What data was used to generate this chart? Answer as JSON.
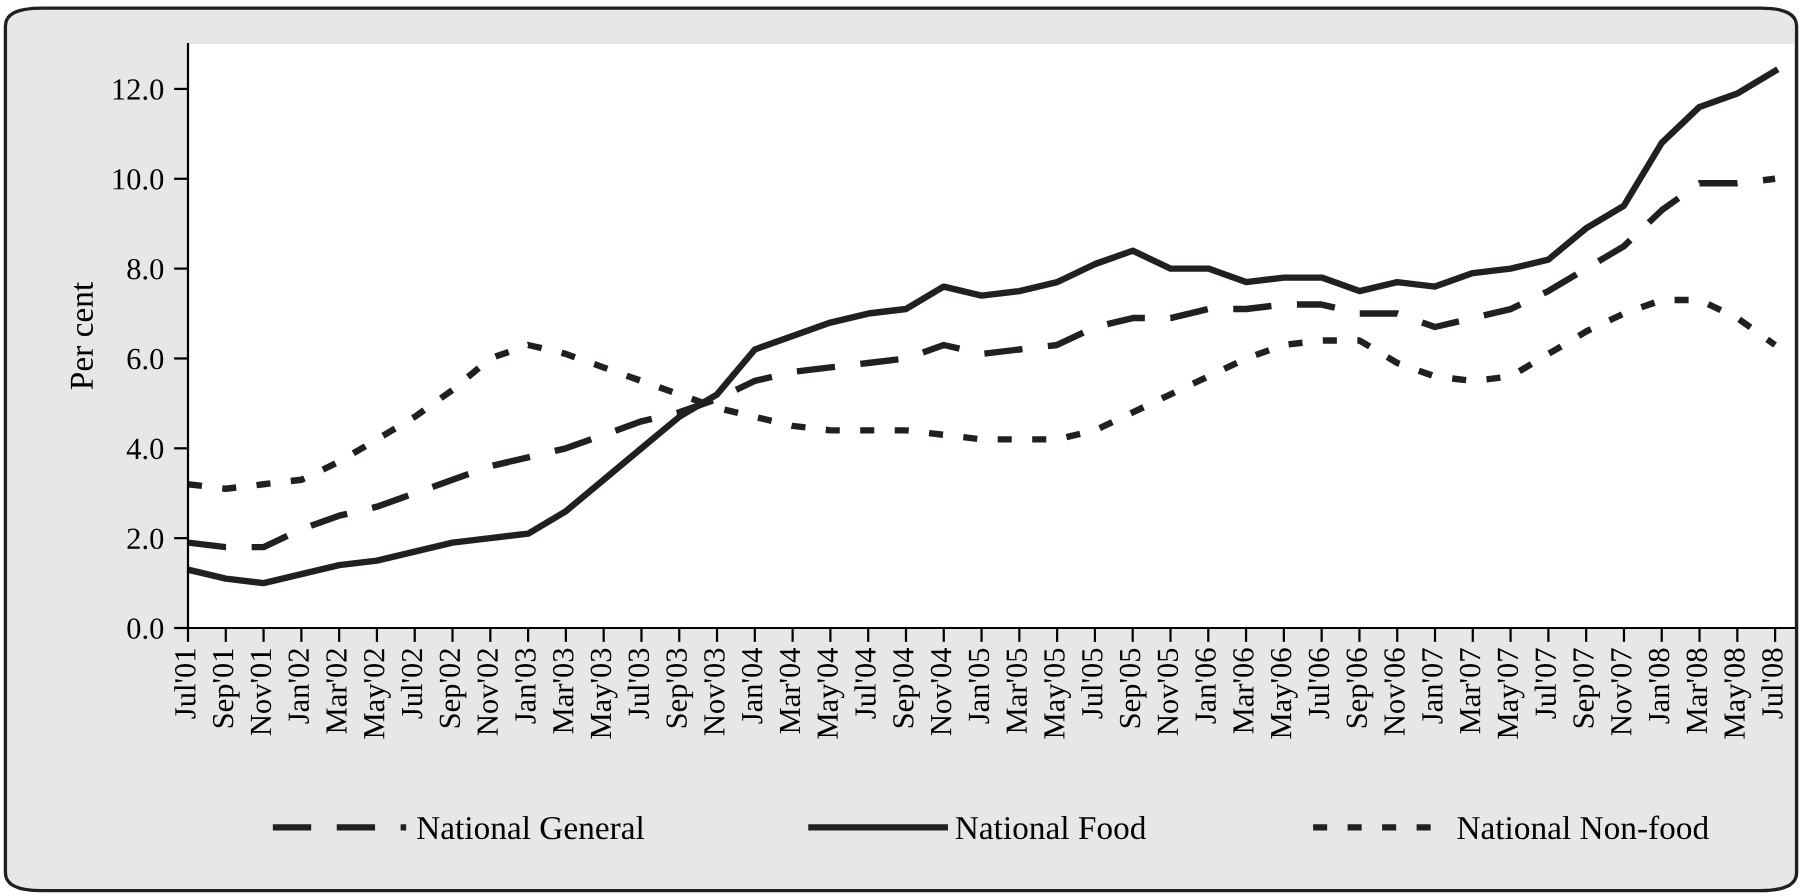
{
  "chart_data": {
    "type": "line",
    "ylabel": "Per cent",
    "categories": [
      "Jul'01",
      "Sep'01",
      "Nov'01",
      "Jan'02",
      "Mar'02",
      "May'02",
      "Jul'02",
      "Sep'02",
      "Nov'02",
      "Jan'03",
      "Mar'03",
      "May'03",
      "Jul'03",
      "Sep'03",
      "Nov'03",
      "Jan'04",
      "Mar'04",
      "May'04",
      "Jul'04",
      "Sep'04",
      "Nov'04",
      "Jan'05",
      "Mar'05",
      "May'05",
      "Jul'05",
      "Sep'05",
      "Nov'05",
      "Jan'06",
      "Mar'06",
      "May'06",
      "Jul'06",
      "Sep'06",
      "Nov'06",
      "Jan'07",
      "Mar'07",
      "May'07",
      "Jul'07",
      "Sep'07",
      "Nov'07",
      "Jan'08",
      "Mar'08",
      "May'08",
      "Jul'08"
    ],
    "series": [
      {
        "name": "National General",
        "color": "#231f20",
        "line_style": "dashed",
        "values": [
          1.9,
          1.8,
          1.8,
          2.2,
          2.5,
          2.7,
          3.0,
          3.3,
          3.6,
          3.8,
          4.0,
          4.3,
          4.6,
          4.8,
          5.1,
          5.5,
          5.7,
          5.8,
          5.9,
          6.0,
          6.3,
          6.1,
          6.2,
          6.3,
          6.7,
          6.9,
          6.9,
          7.1,
          7.1,
          7.2,
          7.2,
          7.0,
          7.0,
          6.7,
          6.9,
          7.1,
          7.5,
          8.0,
          8.5,
          9.3,
          9.9,
          9.9,
          10.0
        ]
      },
      {
        "name": "National Food",
        "color": "#231f20",
        "line_style": "solid",
        "values": [
          1.3,
          1.1,
          1.0,
          1.2,
          1.4,
          1.5,
          1.7,
          1.9,
          2.0,
          2.1,
          2.6,
          3.3,
          4.0,
          4.7,
          5.2,
          6.2,
          6.5,
          6.8,
          7.0,
          7.1,
          7.6,
          7.4,
          7.5,
          7.7,
          8.1,
          8.4,
          8.0,
          8.0,
          7.7,
          7.8,
          7.8,
          7.5,
          7.7,
          7.6,
          7.9,
          8.0,
          8.2,
          8.9,
          9.4,
          10.8,
          11.6,
          11.9,
          12.4
        ]
      },
      {
        "name": "National Non-food",
        "color": "#231f20",
        "line_style": "dotted",
        "values": [
          3.2,
          3.1,
          3.2,
          3.3,
          3.7,
          4.2,
          4.7,
          5.3,
          6.0,
          6.3,
          6.1,
          5.8,
          5.5,
          5.2,
          4.9,
          4.7,
          4.5,
          4.4,
          4.4,
          4.4,
          4.3,
          4.2,
          4.2,
          4.2,
          4.4,
          4.8,
          5.2,
          5.6,
          6.0,
          6.3,
          6.4,
          6.4,
          5.9,
          5.6,
          5.5,
          5.6,
          6.1,
          6.6,
          7.0,
          7.3,
          7.3,
          6.9,
          6.3
        ]
      }
    ],
    "ylim": [
      0,
      13
    ],
    "yticks": [
      {
        "value": 0,
        "label": "0.0"
      },
      {
        "value": 2,
        "label": "2.0"
      },
      {
        "value": 4,
        "label": "4.0"
      },
      {
        "value": 6,
        "label": "6.0"
      },
      {
        "value": 8,
        "label": "8.0"
      },
      {
        "value": 10,
        "label": "10.0"
      },
      {
        "value": 12,
        "label": "12.0"
      }
    ],
    "grid": false,
    "legend": "bottom",
    "marker": "none"
  }
}
